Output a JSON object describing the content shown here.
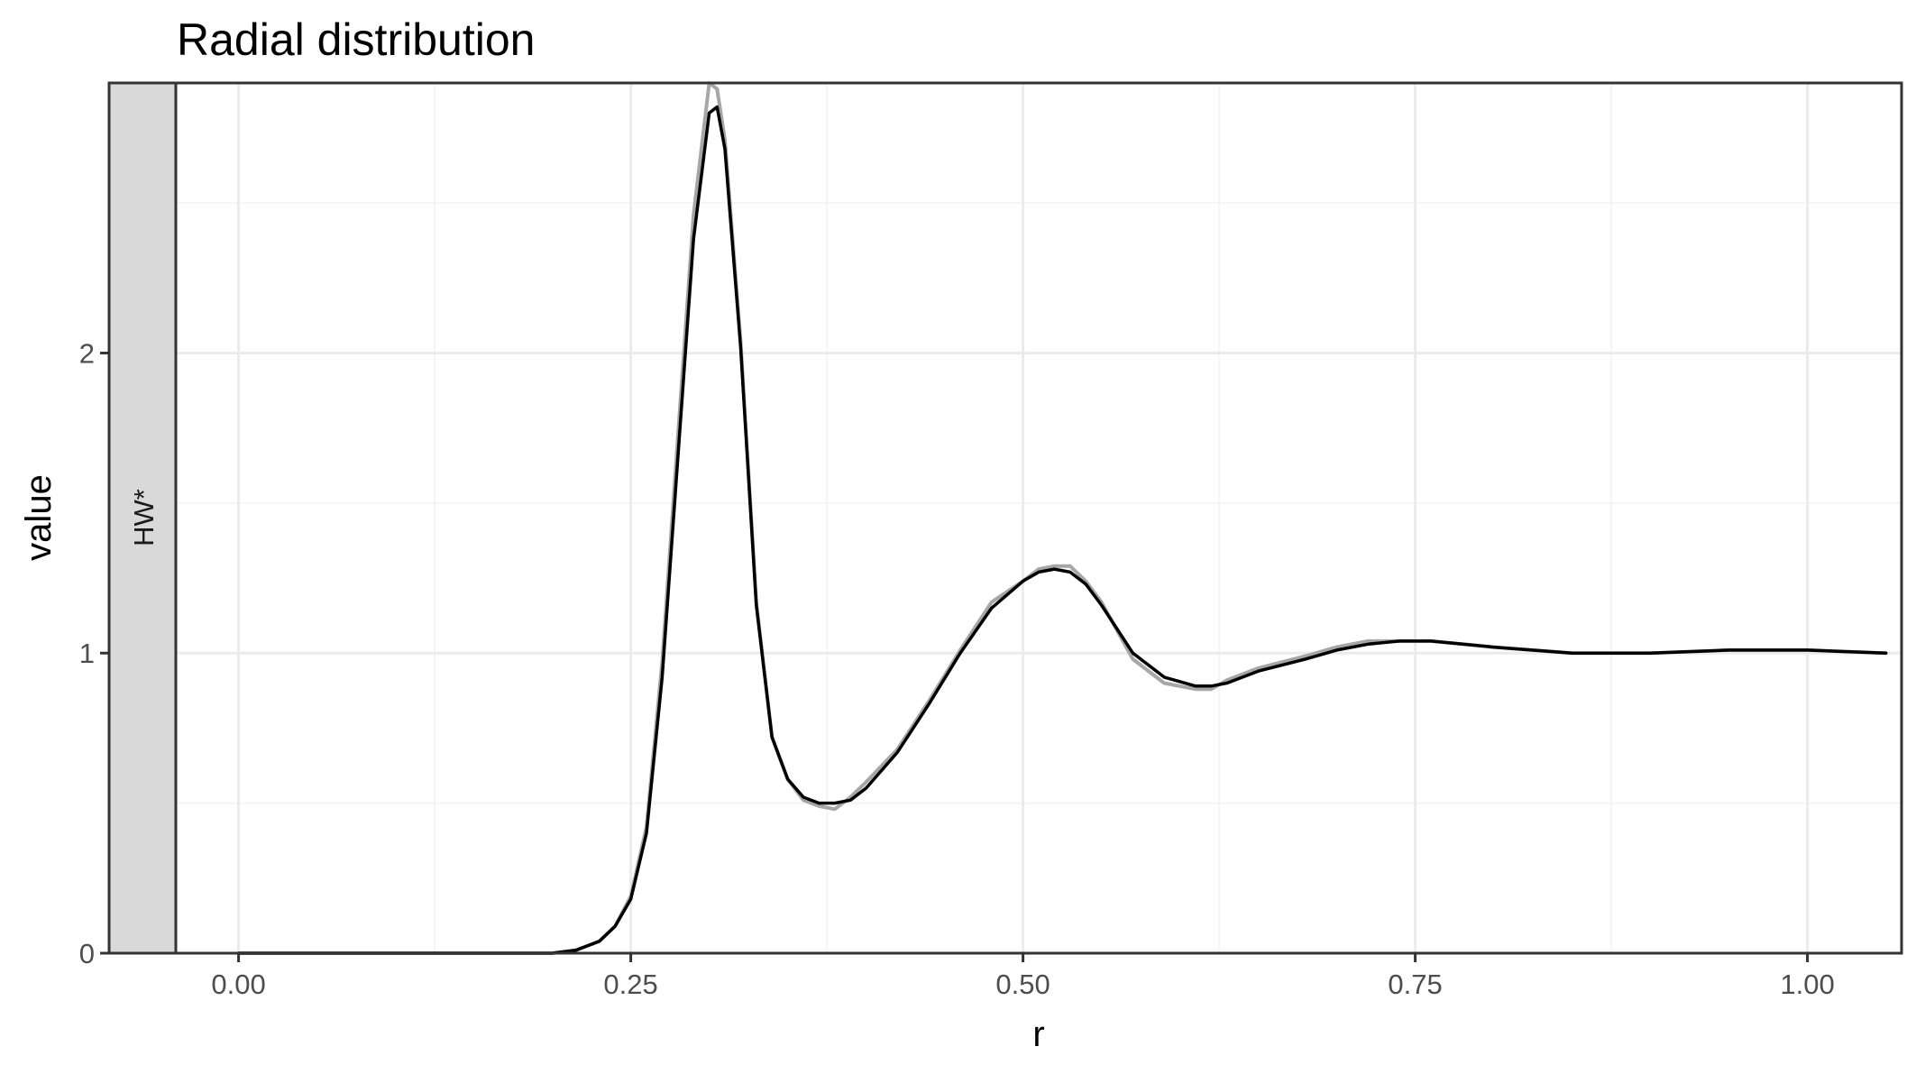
{
  "chart_data": {
    "type": "line",
    "title": "Radial distribution",
    "xlabel": "r",
    "ylabel": "value",
    "facet_strip": "HW*",
    "xlim": [
      -0.04,
      1.06
    ],
    "ylim": [
      0,
      2.9
    ],
    "x_ticks": [
      0.0,
      0.25,
      0.5,
      0.75,
      1.0
    ],
    "x_tick_labels": [
      "0.00",
      "0.25",
      "0.50",
      "0.75",
      "1.00"
    ],
    "y_ticks": [
      0,
      1,
      2
    ],
    "y_tick_labels": [
      "0",
      "1",
      "2"
    ],
    "grid": true,
    "legend": "none",
    "series": [
      {
        "style": "raw",
        "color": "#a6a6a6",
        "x": [
          0.0,
          0.2,
          0.215,
          0.23,
          0.24,
          0.25,
          0.26,
          0.27,
          0.28,
          0.29,
          0.3,
          0.305,
          0.31,
          0.32,
          0.33,
          0.34,
          0.35,
          0.36,
          0.37,
          0.38,
          0.39,
          0.4,
          0.42,
          0.44,
          0.46,
          0.48,
          0.5,
          0.51,
          0.52,
          0.53,
          0.54,
          0.55,
          0.57,
          0.59,
          0.61,
          0.62,
          0.63,
          0.65,
          0.68,
          0.7,
          0.72,
          0.74,
          0.76,
          0.8,
          0.85,
          0.9,
          0.95,
          1.0,
          1.05
        ],
        "y": [
          0.0,
          0.0,
          0.01,
          0.04,
          0.09,
          0.19,
          0.42,
          0.97,
          1.72,
          2.46,
          2.9,
          2.88,
          2.71,
          2.04,
          1.17,
          0.72,
          0.58,
          0.51,
          0.49,
          0.48,
          0.52,
          0.57,
          0.68,
          0.84,
          1.01,
          1.17,
          1.24,
          1.28,
          1.29,
          1.29,
          1.24,
          1.17,
          0.98,
          0.9,
          0.88,
          0.88,
          0.91,
          0.95,
          0.99,
          1.02,
          1.04,
          1.04,
          1.04,
          1.02,
          1.0,
          1.0,
          1.01,
          1.01,
          1.0
        ]
      },
      {
        "style": "smoothed",
        "color": "#000000",
        "x": [
          0.0,
          0.2,
          0.215,
          0.23,
          0.24,
          0.25,
          0.26,
          0.27,
          0.28,
          0.29,
          0.3,
          0.305,
          0.31,
          0.32,
          0.33,
          0.34,
          0.35,
          0.36,
          0.37,
          0.38,
          0.39,
          0.4,
          0.42,
          0.44,
          0.46,
          0.48,
          0.5,
          0.51,
          0.52,
          0.53,
          0.54,
          0.55,
          0.57,
          0.59,
          0.61,
          0.62,
          0.63,
          0.65,
          0.68,
          0.7,
          0.72,
          0.74,
          0.76,
          0.8,
          0.85,
          0.9,
          0.95,
          1.0,
          1.05
        ],
        "y": [
          0.0,
          0.0,
          0.01,
          0.04,
          0.09,
          0.18,
          0.4,
          0.92,
          1.65,
          2.38,
          2.8,
          2.82,
          2.68,
          2.02,
          1.16,
          0.72,
          0.58,
          0.52,
          0.5,
          0.5,
          0.51,
          0.55,
          0.67,
          0.83,
          1.0,
          1.15,
          1.24,
          1.27,
          1.28,
          1.27,
          1.23,
          1.16,
          1.0,
          0.92,
          0.89,
          0.89,
          0.9,
          0.94,
          0.98,
          1.01,
          1.03,
          1.04,
          1.04,
          1.02,
          1.0,
          1.0,
          1.01,
          1.01,
          1.0
        ]
      }
    ]
  }
}
